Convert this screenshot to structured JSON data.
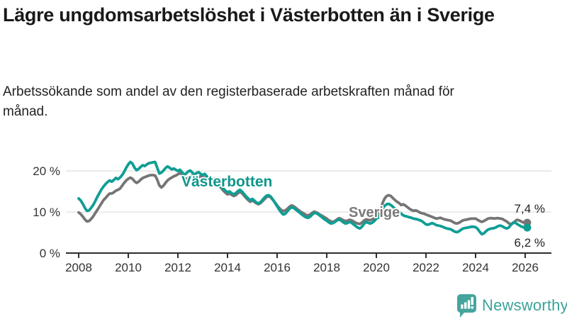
{
  "header": {
    "title": "Lägre ungdomsarbetslöshet i Västerbotten än i Sverige",
    "subtitle": "Arbetssökande som andel av den registerbaserade arbetskraften månad för månad."
  },
  "brand": {
    "name": "Newsworthy",
    "icon": "speech-bubble-bar-chart-icon",
    "color": "#45a59d"
  },
  "chart_data": {
    "type": "line",
    "title": "Lägre ungdomsarbetslöshet i Västerbotten än i Sverige",
    "subtitle": "Arbetssökande som andel av den registerbaserade arbetskraften månad för månad.",
    "x_start_year": 2008,
    "x_step_months": 1,
    "x_ticks": [
      "2008",
      "2010",
      "2012",
      "2014",
      "2016",
      "2018",
      "2020",
      "2022",
      "2024",
      "2026"
    ],
    "y_ticks": [
      {
        "value": 0,
        "label": "0 %"
      },
      {
        "value": 10,
        "label": "10 %"
      },
      {
        "value": 20,
        "label": "20 %"
      }
    ],
    "ylim": [
      0,
      24
    ],
    "grid": "horizontal-only",
    "legend_position": "inline-labels-on-lines",
    "axis_color": "#2e2e2e",
    "grid_color": "#e1e1e1",
    "series": [
      {
        "name": "Sverige",
        "color": "#757575",
        "label_color": "#7a7a7a",
        "end_label": "7,4 %",
        "end_value": 7.4,
        "values": [
          9.9,
          9.5,
          8.9,
          8.2,
          7.7,
          7.8,
          8.3,
          8.9,
          9.7,
          10.5,
          11.3,
          12.1,
          12.9,
          13.4,
          14.0,
          14.5,
          14.5,
          14.8,
          15.2,
          15.4,
          15.7,
          16.4,
          17.1,
          17.7,
          18.1,
          18.4,
          18.1,
          17.5,
          17.1,
          17.4,
          17.9,
          18.3,
          18.5,
          18.7,
          18.9,
          19.0,
          19.0,
          18.9,
          17.9,
          16.5,
          16.0,
          16.4,
          17.1,
          17.7,
          18.1,
          18.4,
          18.7,
          18.9,
          19.2,
          19.5,
          19.1,
          18.4,
          18.0,
          18.3,
          18.7,
          18.9,
          18.6,
          18.3,
          18.5,
          18.7,
          18.5,
          18.4,
          18.0,
          17.4,
          16.9,
          17.1,
          17.4,
          17.0,
          16.4,
          15.8,
          15.2,
          14.7,
          14.3,
          14.5,
          14.2,
          13.9,
          14.1,
          14.6,
          14.9,
          14.6,
          14.0,
          13.4,
          12.9,
          12.5,
          12.8,
          12.5,
          12.1,
          11.9,
          12.2,
          12.7,
          13.2,
          13.7,
          13.9,
          13.5,
          12.9,
          12.3,
          11.6,
          11.0,
          10.5,
          10.2,
          10.4,
          10.8,
          11.3,
          11.6,
          11.4,
          11.0,
          10.6,
          10.2,
          9.9,
          9.6,
          9.3,
          9.2,
          9.4,
          9.8,
          10.1,
          9.9,
          9.6,
          9.3,
          9.0,
          8.7,
          8.4,
          8.0,
          7.7,
          7.6,
          7.8,
          8.2,
          8.5,
          8.3,
          8.0,
          7.8,
          7.9,
          8.1,
          8.0,
          7.7,
          7.4,
          7.2,
          7.1,
          7.4,
          7.9,
          8.2,
          8.1,
          8.0,
          8.2,
          8.5,
          8.9,
          9.3,
          10.4,
          12.2,
          13.3,
          13.9,
          14.1,
          13.9,
          13.4,
          12.9,
          12.5,
          12.2,
          11.7,
          11.9,
          11.6,
          11.2,
          10.8,
          10.5,
          10.3,
          10.4,
          10.2,
          9.9,
          9.7,
          9.6,
          9.4,
          9.2,
          9.0,
          8.8,
          8.6,
          8.4,
          8.5,
          8.6,
          8.4,
          8.2,
          8.1,
          8.0,
          7.9,
          7.6,
          7.3,
          7.2,
          7.4,
          7.7,
          8.0,
          8.1,
          8.2,
          8.3,
          8.4,
          8.4,
          8.4,
          8.1,
          7.8,
          7.6,
          7.8,
          8.1,
          8.4,
          8.5,
          8.5,
          8.4,
          8.5,
          8.5,
          8.4,
          8.3,
          8.0,
          7.7,
          7.3,
          7.0,
          7.2,
          7.7,
          8.1,
          8.0,
          7.7,
          7.5,
          7.4,
          7.4
        ]
      },
      {
        "name": "Västerbotten",
        "color": "#0f9e94",
        "label_color": "#0e968b",
        "end_label": "6,2 %",
        "end_value": 6.2,
        "values": [
          13.3,
          12.8,
          12.0,
          11.0,
          10.3,
          10.4,
          11.0,
          11.7,
          12.6,
          13.7,
          14.6,
          15.5,
          16.2,
          16.8,
          17.3,
          17.7,
          17.4,
          17.8,
          18.3,
          18.0,
          18.4,
          19.0,
          19.8,
          20.8,
          21.6,
          22.2,
          21.8,
          20.8,
          20.2,
          20.5,
          21.0,
          21.4,
          21.2,
          21.6,
          21.9,
          22.0,
          22.1,
          22.2,
          20.8,
          19.4,
          19.6,
          20.1,
          20.7,
          21.1,
          20.8,
          20.4,
          20.6,
          20.3,
          20.0,
          20.3,
          19.7,
          19.1,
          19.4,
          19.9,
          20.1,
          19.6,
          19.1,
          19.5,
          19.7,
          19.3,
          19.0,
          19.3,
          18.7,
          18.0,
          17.6,
          17.9,
          18.1,
          17.5,
          16.8,
          16.2,
          15.7,
          15.2,
          14.8,
          15.0,
          14.6,
          14.3,
          14.6,
          15.1,
          15.4,
          15.0,
          14.4,
          13.8,
          13.3,
          12.9,
          13.2,
          12.8,
          12.3,
          12.1,
          12.4,
          13.0,
          13.6,
          14.0,
          14.1,
          13.7,
          13.0,
          12.2,
          11.4,
          10.6,
          9.9,
          9.4,
          9.6,
          10.2,
          10.8,
          11.2,
          11.0,
          10.6,
          10.2,
          9.8,
          9.4,
          9.0,
          8.7,
          8.6,
          8.9,
          9.4,
          9.8,
          9.7,
          9.4,
          9.0,
          8.6,
          8.2,
          7.9,
          7.5,
          7.2,
          7.3,
          7.6,
          8.0,
          8.2,
          7.9,
          7.5,
          7.2,
          7.3,
          7.6,
          7.4,
          7.0,
          6.6,
          6.2,
          6.0,
          6.4,
          7.1,
          7.6,
          7.4,
          7.2,
          7.4,
          7.8,
          8.4,
          8.7,
          9.6,
          10.8,
          11.5,
          11.9,
          12.0,
          11.7,
          11.3,
          10.8,
          10.4,
          10.0,
          9.6,
          9.2,
          9.0,
          8.9,
          8.7,
          8.6,
          8.4,
          8.3,
          8.2,
          8.0,
          7.8,
          7.4,
          7.0,
          6.9,
          7.1,
          7.3,
          7.1,
          6.8,
          6.7,
          6.6,
          6.4,
          6.2,
          6.0,
          5.9,
          5.8,
          5.5,
          5.2,
          5.1,
          5.3,
          5.7,
          6.0,
          6.1,
          6.2,
          6.3,
          6.4,
          6.4,
          6.3,
          5.9,
          5.2,
          4.6,
          4.8,
          5.3,
          5.7,
          5.9,
          6.0,
          6.1,
          6.3,
          6.6,
          6.7,
          6.5,
          6.2,
          6.0,
          6.2,
          6.8,
          7.4,
          7.5,
          7.1,
          6.8,
          6.5,
          6.3,
          6.2,
          6.2
        ]
      }
    ]
  }
}
